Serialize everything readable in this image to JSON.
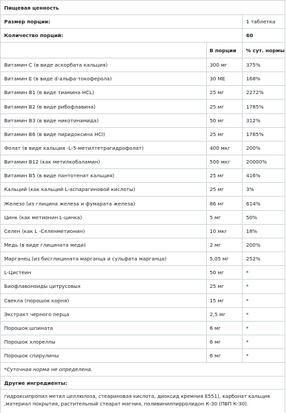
{
  "title": "Пищевая ценность",
  "serving": {
    "label": "Размер порции:",
    "value": "1 таблетка"
  },
  "servings_per": {
    "label": "Количество порций:",
    "value": "60"
  },
  "header": {
    "per_serving": "В порции",
    "dv": "% сут. нормы"
  },
  "rows": [
    {
      "name": "Витамин C (в виде аскорбата кальция)",
      "amount": "300 мг",
      "dv": "375%"
    },
    {
      "name": "Витамин E (в виде d-альфа-токоферола)",
      "amount": "30 МЕ",
      "dv": "168%"
    },
    {
      "name": "Витамин B1 (в виде тиамина HCL)",
      "amount": "25 мг",
      "dv": "2272%"
    },
    {
      "name": "Витамин B2 (в виде рибофлавина)",
      "amount": "25 мг",
      "dv": "1785%"
    },
    {
      "name": "Витамин B3 (в виде никотинамида)",
      "amount": "50 мг",
      "dv": "312%"
    },
    {
      "name": "Витамин B6 (в виде пиридоксина HCl)",
      "amount": "25 мг",
      "dv": "1785%"
    },
    {
      "name": "Фолат (в виде кальция -L-5-метилтетрагидрофолат)",
      "amount": "400 мкг",
      "dv": "200%"
    },
    {
      "name": "Витамин B12 (как метилкобаламин)",
      "amount": "500 мкг",
      "dv": "20000%"
    },
    {
      "name": "Витамин B5 (в виде пантотенат кальция)",
      "amount": "25 мг",
      "dv": "416%"
    },
    {
      "name": "Кальций (как кальций L-аспарагиновой кислоты)",
      "amount": "25 мг",
      "dv": "3%"
    },
    {
      "name": "Железо (из глицина железа и фумарата железа)",
      "amount": "86 мг",
      "dv": "614%"
    },
    {
      "name": "Цинк (как метионин L-цинка)",
      "amount": "5 мг",
      "dv": "50%"
    },
    {
      "name": "Селен (как L -Селенметионин)",
      "amount": "10 мкг",
      "dv": "18%"
    },
    {
      "name": "Медь (в виде глицината меди)",
      "amount": "2 мг",
      "dv": "200%"
    },
    {
      "name": "Марганец (из бисглицината марганца и сульфата марганца)",
      "amount": "5,05 мг",
      "dv": "252%"
    },
    {
      "name": "L-Цистеин",
      "amount": "50 мг",
      "dv": "*"
    },
    {
      "name": "Биофлавоноиды цитрусовых",
      "amount": "25 мг",
      "dv": "*"
    },
    {
      "name": "Свекла (порошок корня)",
      "amount": "15 мг",
      "dv": "*"
    },
    {
      "name": "Экстракт черного перца",
      "amount": "2,5 мг",
      "dv": "*"
    },
    {
      "name": "Порошок шпината",
      "amount": "6 мг",
      "dv": "*"
    },
    {
      "name": "Порошок хлореллы",
      "amount": "6 мг",
      "dv": "*"
    },
    {
      "name": "Порошок спирулины",
      "amount": "6 мг",
      "dv": "*"
    }
  ],
  "footnote": "*Суточная норма не определена.",
  "other_ingredients_title": "Другие ингредиенты:",
  "other_ingredients": "гидроксипропил метил целлюлоза, стеариновая кислота, диоксид кремния E551), карбонат кальция ,материал покрытия, растительный стеарат магния, поливинилпирролидон К-30 (ПВП К-30)."
}
